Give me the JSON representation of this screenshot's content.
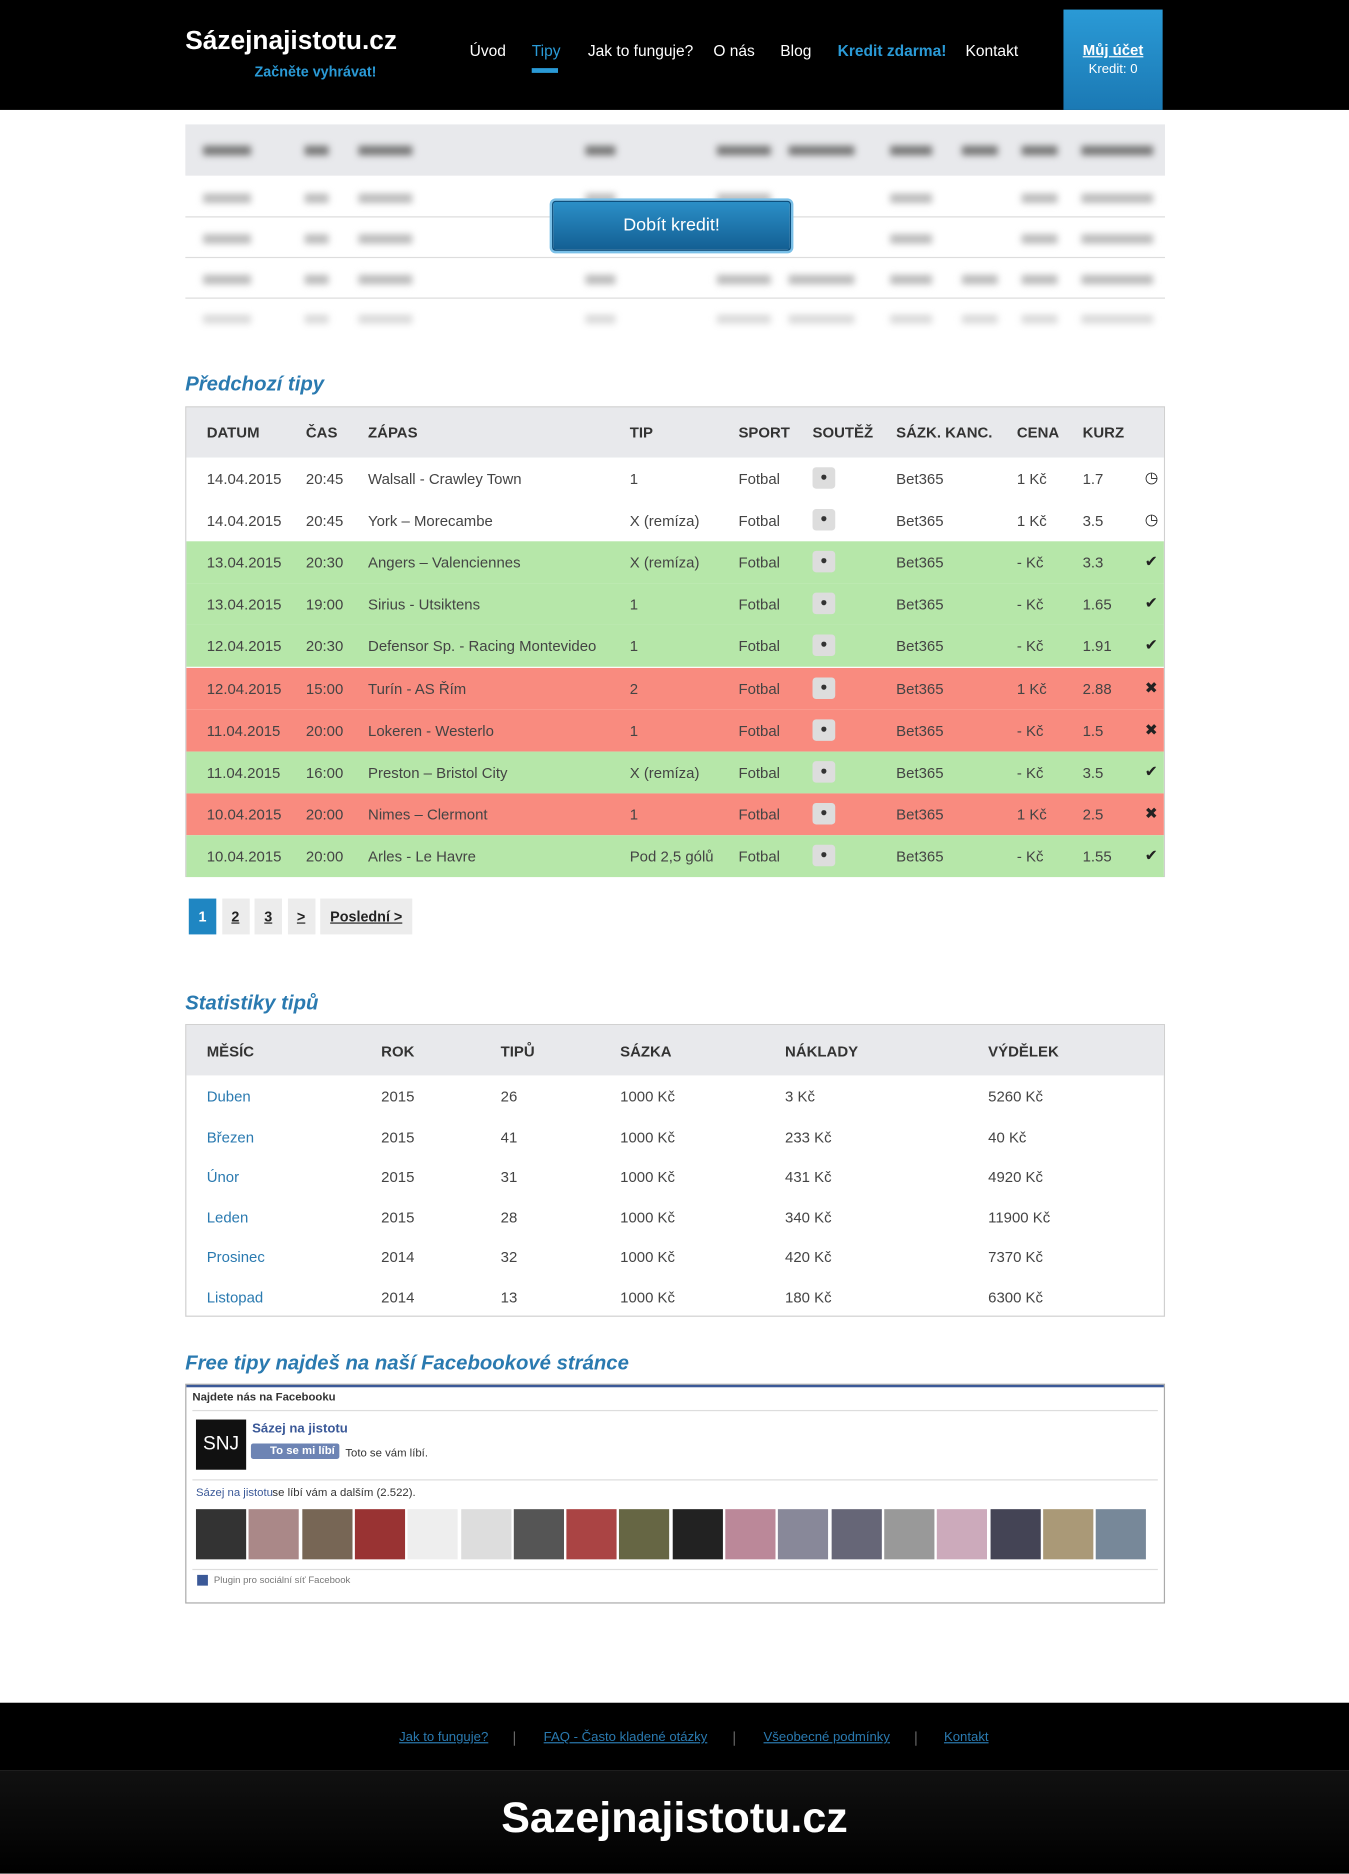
{
  "header": {
    "logo": "Sázejnajistotu.cz",
    "tagline": "Začněte vyhrávat!",
    "nav": [
      "Úvod",
      "Tipy",
      "Jak to funguje?",
      "O nás",
      "Blog",
      "Kredit zdarma!",
      "Kontakt"
    ],
    "active_nav": 1,
    "account": "Můj účet",
    "credit": "Kredit: 0"
  },
  "locked": {
    "button": "Dobít kredit!"
  },
  "tips": {
    "title": "Předchozí tipy",
    "columns": [
      "DATUM",
      "ČAS",
      "ZÁPAS",
      "TIP",
      "SPORT",
      "SOUTĚŽ",
      "SÁZK. KANC.",
      "CENA",
      "KURZ"
    ],
    "rows": [
      [
        "14.04.2015",
        "20:45",
        "Walsall - Crawley Town",
        "1",
        "Fotbal",
        "Bet365",
        "1 Kč",
        "1.7",
        "pending"
      ],
      [
        "14.04.2015",
        "20:45",
        "York – Morecambe",
        "X (remíza)",
        "Fotbal",
        "Bet365",
        "1 Kč",
        "3.5",
        "pending"
      ],
      [
        "13.04.2015",
        "20:30",
        "Angers – Valenciennes",
        "X (remíza)",
        "Fotbal",
        "Bet365",
        "- Kč",
        "3.3",
        "win"
      ],
      [
        "13.04.2015",
        "19:00",
        "Sirius - Utsiktens",
        "1",
        "Fotbal",
        "Bet365",
        "- Kč",
        "1.65",
        "win"
      ],
      [
        "12.04.2015",
        "20:30",
        "Defensor Sp. - Racing Montevideo",
        "1",
        "Fotbal",
        "Bet365",
        "- Kč",
        "1.91",
        "win"
      ],
      [
        "12.04.2015",
        "15:00",
        "Turín - AS Řím",
        "2",
        "Fotbal",
        "Bet365",
        "1 Kč",
        "2.88",
        "loss"
      ],
      [
        "11.04.2015",
        "20:00",
        "Lokeren - Westerlo",
        "1",
        "Fotbal",
        "Bet365",
        "- Kč",
        "1.5",
        "loss"
      ],
      [
        "11.04.2015",
        "16:00",
        "Preston – Bristol City",
        "X (remíza)",
        "Fotbal",
        "Bet365",
        "- Kč",
        "3.5",
        "win"
      ],
      [
        "10.04.2015",
        "20:00",
        "Nimes – Clermont",
        "1",
        "Fotbal",
        "Bet365",
        "1 Kč",
        "2.5",
        "loss"
      ],
      [
        "10.04.2015",
        "20:00",
        "Arles - Le Havre",
        "Pod 2,5 gólů",
        "Fotbal",
        "Bet365",
        "- Kč",
        "1.55",
        "win"
      ]
    ]
  },
  "pagination": [
    "1",
    "2",
    "3",
    ">",
    "Poslední >"
  ],
  "stats": {
    "title": "Statistiky tipů",
    "columns": [
      "MĚSÍC",
      "ROK",
      "TIPŮ",
      "SÁZKA",
      "NÁKLADY",
      "VÝDĚLEK"
    ],
    "rows": [
      [
        "Duben",
        "2015",
        "26",
        "1000 Kč",
        "3 Kč",
        "5260 Kč"
      ],
      [
        "Březen",
        "2015",
        "41",
        "1000 Kč",
        "233 Kč",
        "40 Kč"
      ],
      [
        "Únor",
        "2015",
        "31",
        "1000 Kč",
        "431 Kč",
        "4920 Kč"
      ],
      [
        "Leden",
        "2015",
        "28",
        "1000 Kč",
        "340 Kč",
        "11900 Kč"
      ],
      [
        "Prosinec",
        "2014",
        "32",
        "1000 Kč",
        "420 Kč",
        "7370 Kč"
      ],
      [
        "Listopad",
        "2014",
        "13",
        "1000 Kč",
        "180 Kč",
        "6300 Kč"
      ]
    ]
  },
  "facebook": {
    "title": "Free tipy najdeš na naší Facebookové stránce",
    "box_title": "Najdete nás na Facebooku",
    "logo": "SNJ",
    "page_name": "Sázej na jistotu",
    "like_button": "To se mi líbí",
    "liked": "Toto se vám líbí.",
    "page_link": "Sázej na jistotu",
    "likes_text": "se líbí vám a dalším (2.522).",
    "plugin": "Plugin pro sociální síť Facebook"
  },
  "footer": {
    "links": [
      "Jak to funguje?",
      "FAQ - Často kladené otázky",
      "Všeobecné podmínky",
      "Kontakt"
    ],
    "brand": "Sazejnajistotu.cz"
  }
}
